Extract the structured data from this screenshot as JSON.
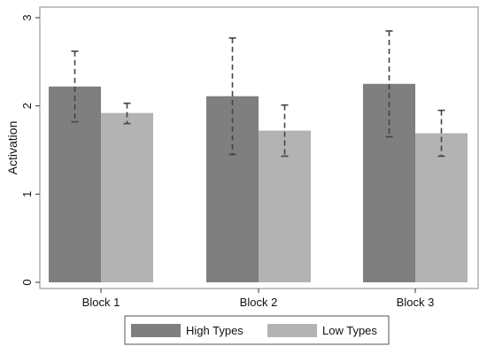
{
  "chart_data": {
    "type": "bar",
    "title": "",
    "xlabel": "",
    "ylabel": "Activation",
    "ylim": [
      0,
      3
    ],
    "yticks": [
      0,
      1,
      2,
      3
    ],
    "grid": false,
    "legend_position": "bottom",
    "categories": [
      "Block 1",
      "Block 2",
      "Block 3"
    ],
    "series": [
      {
        "name": "High Types",
        "color": "#7f7f7f",
        "values": [
          2.22,
          2.11,
          2.25
        ],
        "error_low": [
          1.82,
          1.45,
          1.65
        ],
        "error_high": [
          2.62,
          2.77,
          2.85
        ]
      },
      {
        "name": "Low Types",
        "color": "#b3b3b3",
        "values": [
          1.92,
          1.72,
          1.69
        ],
        "error_low": [
          1.8,
          1.43,
          1.43
        ],
        "error_high": [
          2.03,
          2.01,
          1.95
        ]
      }
    ],
    "error_bar_style": "dashed"
  }
}
